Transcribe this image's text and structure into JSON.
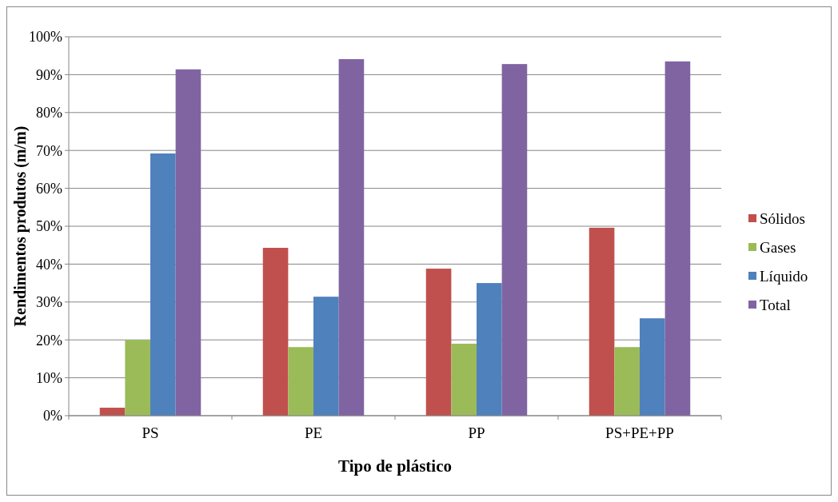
{
  "chart_data": {
    "type": "bar",
    "xlabel": "Tipo de plástico",
    "ylabel": "Rendimentos produtos (m/m)",
    "categories": [
      "PS",
      "PE",
      "PP",
      "PS+PE+PP"
    ],
    "series": [
      {
        "name": "Sólidos",
        "color": "#c0504d",
        "values": [
          2.1,
          44.3,
          38.8,
          49.6
        ]
      },
      {
        "name": "Gases",
        "color": "#9bbb59",
        "values": [
          20,
          18.1,
          19,
          18.1
        ]
      },
      {
        "name": "Líquido",
        "color": "#4f81bd",
        "values": [
          69.2,
          31.4,
          35,
          25.7
        ]
      },
      {
        "name": "Total",
        "color": "#8064a2",
        "values": [
          91.4,
          94.1,
          92.8,
          93.5
        ]
      }
    ],
    "ylim": [
      0,
      100
    ],
    "yticks": [
      {
        "value": 0,
        "label": "0%"
      },
      {
        "value": 10,
        "label": "10%"
      },
      {
        "value": 20,
        "label": "20%"
      },
      {
        "value": 30,
        "label": "30%"
      },
      {
        "value": 40,
        "label": "40%"
      },
      {
        "value": 50,
        "label": "50%"
      },
      {
        "value": 60,
        "label": "60%"
      },
      {
        "value": 70,
        "label": "70%"
      },
      {
        "value": 80,
        "label": "80%"
      },
      {
        "value": 90,
        "label": "90%"
      },
      {
        "value": 100,
        "label": "100%"
      }
    ],
    "grid": "y",
    "legend": "right"
  }
}
